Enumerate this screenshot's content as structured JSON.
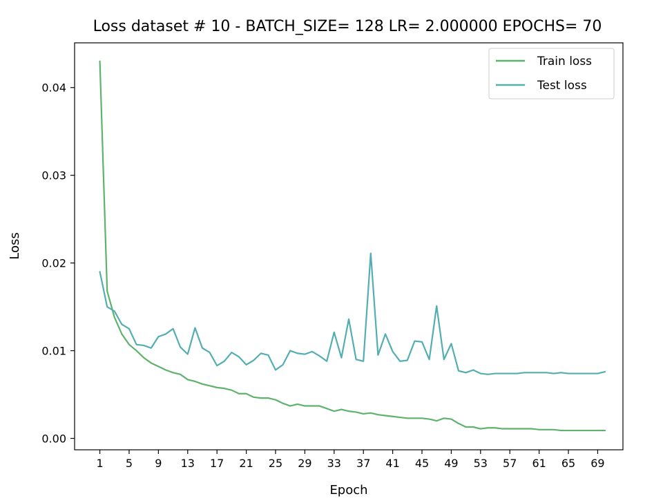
{
  "chart_data": {
    "type": "line",
    "title": "Loss dataset # 10 - BATCH_SIZE= 128 LR= 2.000000  EPOCHS= 70",
    "xlabel": "Epoch",
    "ylabel": "Loss",
    "xlim": [
      -2.45,
      72.45
    ],
    "ylim": [
      -0.0013,
      0.0451
    ],
    "xticks": [
      1,
      5,
      9,
      13,
      17,
      21,
      25,
      29,
      33,
      37,
      41,
      45,
      49,
      53,
      57,
      61,
      65,
      69
    ],
    "yticks": [
      0.0,
      0.01,
      0.02,
      0.03,
      0.04
    ],
    "ytick_labels": [
      "0.00",
      "0.01",
      "0.02",
      "0.03",
      "0.04"
    ],
    "grid": false,
    "legend_position": "top-right",
    "x": [
      1,
      2,
      3,
      4,
      5,
      6,
      7,
      8,
      9,
      10,
      11,
      12,
      13,
      14,
      15,
      16,
      17,
      18,
      19,
      20,
      21,
      22,
      23,
      24,
      25,
      26,
      27,
      28,
      29,
      30,
      31,
      32,
      33,
      34,
      35,
      36,
      37,
      38,
      39,
      40,
      41,
      42,
      43,
      44,
      45,
      46,
      47,
      48,
      49,
      50,
      51,
      52,
      53,
      54,
      55,
      56,
      57,
      58,
      59,
      60,
      61,
      62,
      63,
      64,
      65,
      66,
      67,
      68,
      69,
      70
    ],
    "series": [
      {
        "name": "Train loss",
        "color": "#5db36b",
        "values": [
          0.043,
          0.0168,
          0.0138,
          0.0119,
          0.0107,
          0.01,
          0.0092,
          0.0086,
          0.0082,
          0.0078,
          0.0075,
          0.0073,
          0.0067,
          0.0065,
          0.0062,
          0.006,
          0.0058,
          0.0057,
          0.0055,
          0.0051,
          0.0051,
          0.0047,
          0.0046,
          0.0046,
          0.0044,
          0.004,
          0.0037,
          0.0039,
          0.0037,
          0.0037,
          0.0037,
          0.0034,
          0.0031,
          0.0033,
          0.0031,
          0.003,
          0.0028,
          0.0029,
          0.0027,
          0.0026,
          0.0025,
          0.0024,
          0.0023,
          0.0023,
          0.0023,
          0.0022,
          0.002,
          0.0023,
          0.0022,
          0.0017,
          0.0013,
          0.0013,
          0.0011,
          0.0012,
          0.0012,
          0.0011,
          0.0011,
          0.0011,
          0.0011,
          0.0011,
          0.001,
          0.001,
          0.001,
          0.0009,
          0.0009,
          0.0009,
          0.0009,
          0.0009,
          0.0009,
          0.0009
        ]
      },
      {
        "name": "Test loss",
        "color": "#52aeb0",
        "values": [
          0.019,
          0.015,
          0.0145,
          0.013,
          0.0125,
          0.0107,
          0.0106,
          0.0103,
          0.0116,
          0.0119,
          0.0125,
          0.0104,
          0.0096,
          0.0126,
          0.0103,
          0.0098,
          0.0083,
          0.0088,
          0.0098,
          0.0093,
          0.0084,
          0.0089,
          0.0097,
          0.0095,
          0.0078,
          0.0084,
          0.01,
          0.0097,
          0.0096,
          0.0099,
          0.0094,
          0.0088,
          0.0121,
          0.0092,
          0.0136,
          0.009,
          0.0088,
          0.0211,
          0.0095,
          0.0119,
          0.0099,
          0.0088,
          0.0089,
          0.0111,
          0.011,
          0.009,
          0.0151,
          0.009,
          0.0108,
          0.0077,
          0.0075,
          0.0078,
          0.0074,
          0.0073,
          0.0074,
          0.0074,
          0.0074,
          0.0074,
          0.0075,
          0.0075,
          0.0075,
          0.0075,
          0.0074,
          0.0075,
          0.0074,
          0.0074,
          0.0074,
          0.0074,
          0.0074,
          0.0076
        ]
      }
    ]
  }
}
